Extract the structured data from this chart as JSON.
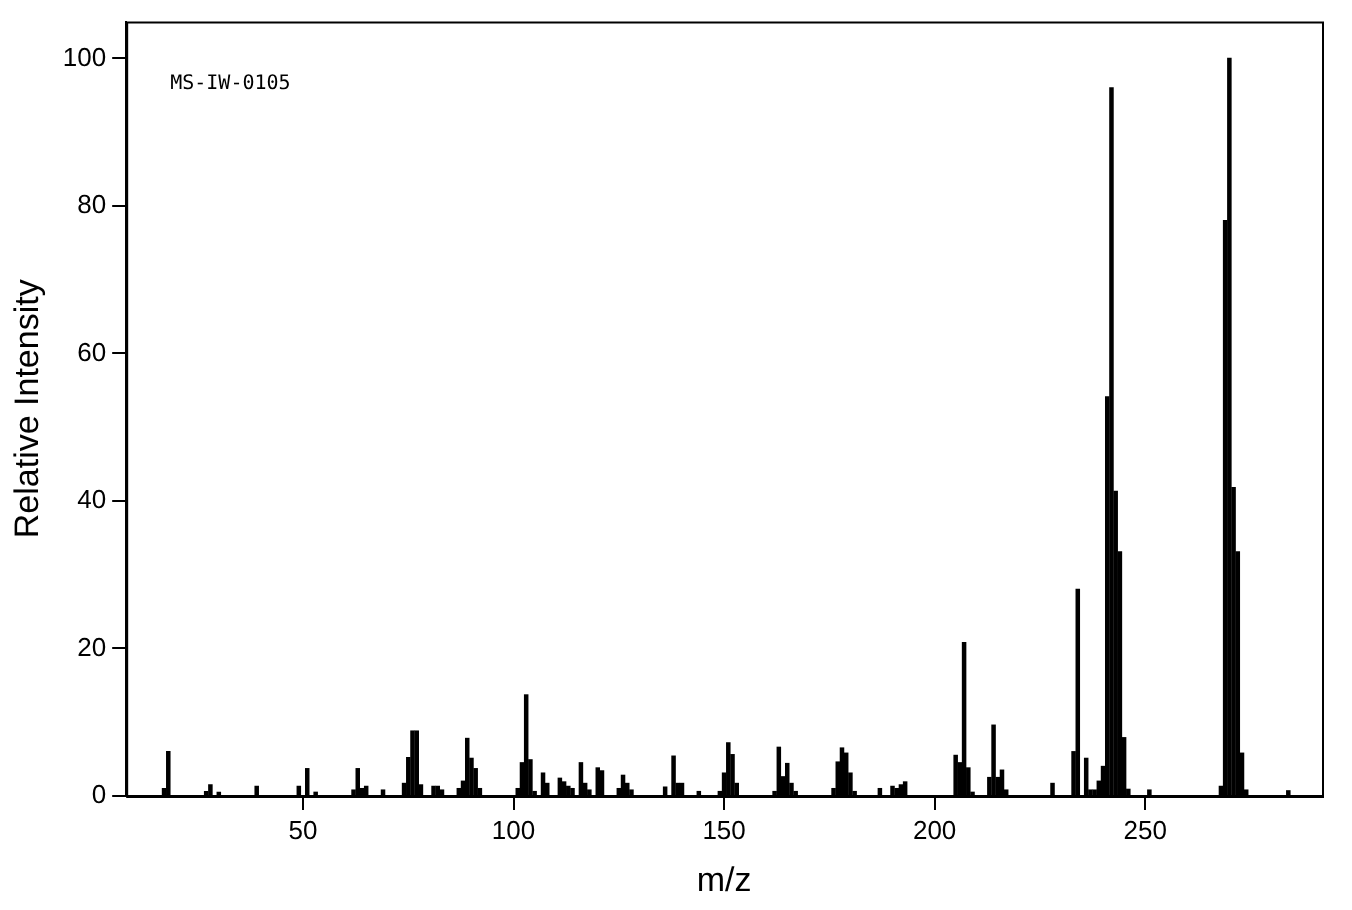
{
  "chart_data": {
    "type": "bar",
    "xlabel": "m/z",
    "ylabel": "Relative Intensity",
    "annotations": [
      "MS-IW-0105"
    ],
    "x": [
      17,
      18,
      27,
      28,
      30,
      39,
      49,
      51,
      53,
      62,
      63,
      64,
      65,
      69,
      74,
      75,
      76,
      77,
      78,
      81,
      82,
      83,
      87,
      88,
      89,
      90,
      91,
      92,
      101,
      102,
      103,
      104,
      105,
      107,
      108,
      111,
      112,
      113,
      114,
      116,
      117,
      118,
      120,
      121,
      125,
      126,
      127,
      128,
      136,
      138,
      139,
      140,
      144,
      149,
      150,
      151,
      152,
      153,
      162,
      163,
      164,
      165,
      166,
      167,
      176,
      177,
      178,
      179,
      180,
      181,
      187,
      190,
      191,
      192,
      193,
      205,
      206,
      207,
      208,
      209,
      213,
      214,
      215,
      216,
      217,
      228,
      233,
      234,
      236,
      237,
      238,
      239,
      240,
      241,
      242,
      243,
      244,
      245,
      246,
      251,
      268,
      269,
      270,
      271,
      272,
      273,
      274,
      284
    ],
    "series": [
      {
        "color": "#000000",
        "values": [
          1.0,
          6.0,
          0.6,
          1.5,
          0.5,
          1.3,
          1.3,
          3.7,
          0.5,
          0.8,
          3.7,
          1.0,
          1.3,
          0.8,
          1.7,
          5.2,
          8.8,
          8.8,
          1.5,
          1.3,
          1.3,
          0.8,
          1.0,
          2.0,
          7.8,
          5.1,
          3.7,
          1.0,
          1.0,
          4.5,
          13.7,
          4.9,
          0.6,
          3.1,
          1.7,
          2.4,
          1.9,
          1.3,
          1.0,
          4.5,
          1.7,
          0.8,
          3.8,
          3.4,
          1.0,
          2.8,
          1.7,
          0.8,
          1.2,
          5.4,
          1.7,
          1.7,
          0.6,
          0.6,
          3.1,
          7.2,
          5.6,
          1.7,
          0.6,
          6.6,
          2.6,
          4.4,
          1.7,
          0.6,
          1.0,
          4.6,
          6.5,
          5.8,
          3.1,
          0.6,
          1.0,
          1.3,
          1.0,
          1.5,
          1.9,
          5.5,
          4.5,
          20.8,
          3.8,
          0.5,
          2.5,
          9.6,
          2.5,
          3.5,
          0.8,
          1.7,
          6.0,
          28.0,
          5.1,
          0.8,
          0.8,
          2.0,
          4.0,
          54.1,
          96.0,
          41.3,
          33.1,
          7.9,
          0.9,
          0.8,
          1.3,
          78.0,
          100,
          41.8,
          33.1,
          5.8,
          0.8,
          0.7
        ]
      }
    ],
    "xlim": [
      8,
      292
    ],
    "xticks": [
      50,
      100,
      150,
      200,
      250
    ],
    "ylim": [
      0,
      105
    ],
    "yticks": [
      0,
      20,
      40,
      60,
      80,
      100
    ]
  }
}
